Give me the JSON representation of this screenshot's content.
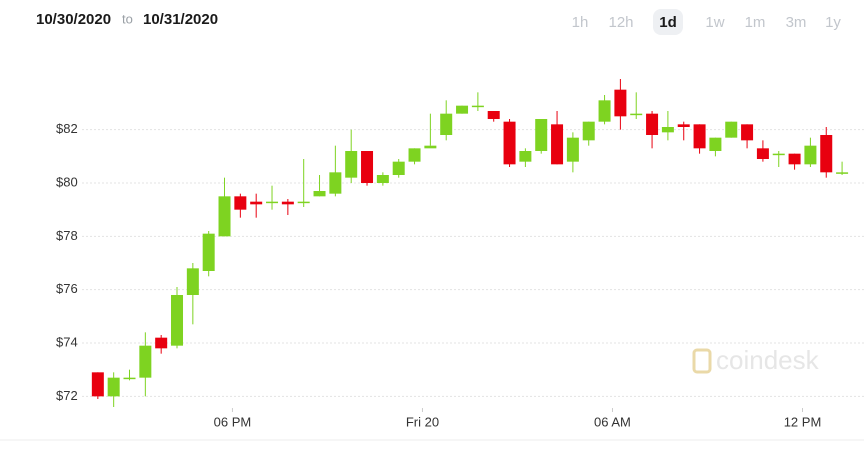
{
  "header": {
    "start_date": "10/30/2020",
    "separator": "to",
    "end_date": "10/31/2020",
    "ranges": [
      "1h",
      "12h",
      "1d",
      "1w",
      "1m",
      "3m",
      "1y"
    ],
    "selected_range": 2
  },
  "watermark": "coindesk",
  "chart_data": {
    "type": "candlestick",
    "x": [
      13.75,
      14.25,
      14.75,
      15.25,
      15.75,
      16.25,
      16.75,
      17.25,
      17.75,
      18.25,
      18.75,
      19.25,
      19.75,
      20.25,
      20.75,
      21.25,
      21.75,
      22.25,
      22.75,
      23.25,
      23.75,
      24.25,
      24.75,
      25.25,
      25.75,
      26.25,
      26.75,
      27.25,
      27.75,
      28.25,
      28.75,
      29.25,
      29.75,
      30.25,
      30.75,
      31.25,
      31.75,
      32.25,
      32.75,
      33.25,
      33.75,
      34.25,
      34.75,
      35.25,
      35.75,
      36.25,
      36.75,
      37.25
    ],
    "open": [
      72.9,
      72.0,
      72.7,
      72.7,
      74.2,
      73.9,
      75.8,
      76.7,
      78.0,
      79.5,
      79.3,
      79.3,
      79.3,
      79.3,
      79.5,
      79.6,
      80.2,
      81.2,
      80.0,
      80.3,
      80.8,
      81.3,
      81.8,
      82.6,
      82.9,
      82.7,
      82.3,
      80.8,
      81.2,
      82.2,
      80.8,
      81.6,
      82.3,
      83.5,
      82.6,
      82.6,
      81.9,
      82.2,
      82.2,
      81.2,
      81.7,
      82.2,
      81.3,
      81.1,
      81.1,
      80.7,
      81.8,
      80.4
    ],
    "high": [
      72.9,
      72.9,
      73.0,
      74.4,
      74.3,
      76.1,
      77.0,
      78.2,
      80.2,
      79.6,
      79.6,
      79.9,
      79.4,
      80.9,
      80.3,
      81.4,
      82.0,
      81.2,
      80.4,
      80.9,
      81.3,
      82.6,
      83.1,
      82.9,
      83.4,
      82.7,
      82.4,
      81.3,
      82.4,
      82.7,
      81.9,
      82.3,
      83.3,
      83.9,
      83.4,
      82.7,
      82.7,
      82.3,
      82.2,
      81.7,
      82.3,
      82.2,
      81.6,
      81.2,
      81.1,
      81.7,
      82.1,
      80.8
    ],
    "low": [
      71.9,
      71.6,
      72.6,
      72.0,
      73.6,
      73.8,
      74.7,
      76.5,
      78.0,
      78.7,
      78.7,
      79.0,
      78.8,
      79.1,
      79.5,
      79.5,
      80.0,
      79.9,
      79.9,
      80.2,
      80.7,
      81.4,
      81.6,
      82.6,
      82.7,
      82.3,
      80.6,
      80.6,
      81.1,
      80.7,
      80.4,
      81.4,
      82.2,
      82.0,
      82.4,
      81.3,
      81.6,
      81.6,
      81.1,
      81.0,
      81.7,
      81.3,
      80.8,
      80.6,
      80.5,
      80.6,
      80.2,
      80.3
    ],
    "close": [
      72.0,
      72.7,
      72.7,
      73.9,
      73.8,
      75.8,
      76.8,
      78.1,
      79.5,
      79.0,
      79.2,
      79.3,
      79.2,
      79.3,
      79.7,
      80.4,
      81.2,
      80.0,
      80.3,
      80.8,
      81.3,
      81.4,
      82.6,
      82.9,
      82.9,
      82.4,
      80.7,
      81.2,
      82.4,
      80.7,
      81.7,
      82.3,
      83.1,
      82.5,
      82.6,
      81.8,
      82.1,
      82.1,
      81.3,
      81.7,
      82.3,
      81.6,
      80.9,
      81.1,
      80.7,
      81.4,
      80.4,
      80.4
    ],
    "up_color": "#7ed321",
    "down_color": "#e8000f",
    "xlim": [
      13.25,
      37.5
    ],
    "xticks": [
      {
        "value": 18,
        "label": "06 PM"
      },
      {
        "value": 24,
        "label": "Fri 20"
      },
      {
        "value": 30,
        "label": "06 AM"
      },
      {
        "value": 36,
        "label": "12 PM"
      }
    ],
    "ylim": [
      71.6,
      84.8
    ],
    "yticks": [
      {
        "value": 72,
        "label": "$72"
      },
      {
        "value": 74,
        "label": "$74"
      },
      {
        "value": 76,
        "label": "$76"
      },
      {
        "value": 78,
        "label": "$78"
      },
      {
        "value": 80,
        "label": "$80"
      },
      {
        "value": 82,
        "label": "$82"
      }
    ],
    "grid": true
  }
}
